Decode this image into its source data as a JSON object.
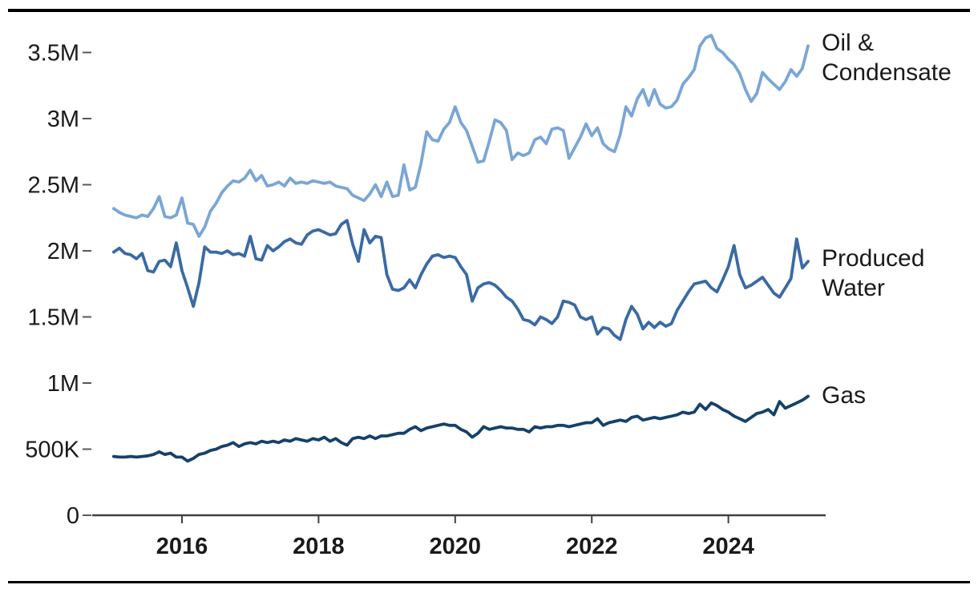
{
  "chart_data": {
    "type": "line",
    "title": "",
    "xlabel": "",
    "ylabel": "",
    "frequency": "monthly",
    "x_start": "2015-01",
    "x_end": "2025-03",
    "grid": false,
    "legend_position": "right-end-of-lines",
    "ylim_millions": [
      0,
      3.7
    ],
    "y_ticks": [
      {
        "label": "0",
        "value_millions": 0
      },
      {
        "label": "500K",
        "value_millions": 0.5
      },
      {
        "label": "1M",
        "value_millions": 1.0
      },
      {
        "label": "1.5M",
        "value_millions": 1.5
      },
      {
        "label": "2M",
        "value_millions": 2.0
      },
      {
        "label": "2.5M",
        "value_millions": 2.5
      },
      {
        "label": "3M",
        "value_millions": 3.0
      },
      {
        "label": "3.5M",
        "value_millions": 3.5
      }
    ],
    "x_ticks": [
      {
        "label": "2016",
        "year": 2016
      },
      {
        "label": "2018",
        "year": 2018
      },
      {
        "label": "2020",
        "year": 2020
      },
      {
        "label": "2022",
        "year": 2022
      },
      {
        "label": "2024",
        "year": 2024
      }
    ],
    "series": [
      {
        "name": "Oil & Condensate",
        "label_lines": [
          "Oil &",
          "Condensate"
        ],
        "color": "#7aa6d6",
        "values_millions": [
          2.32,
          2.29,
          2.27,
          2.26,
          2.25,
          2.27,
          2.26,
          2.32,
          2.41,
          2.26,
          2.25,
          2.27,
          2.4,
          2.21,
          2.2,
          2.11,
          2.18,
          2.3,
          2.36,
          2.44,
          2.49,
          2.53,
          2.52,
          2.55,
          2.61,
          2.53,
          2.57,
          2.49,
          2.5,
          2.52,
          2.49,
          2.55,
          2.51,
          2.52,
          2.51,
          2.53,
          2.52,
          2.51,
          2.52,
          2.49,
          2.48,
          2.47,
          2.42,
          2.4,
          2.38,
          2.43,
          2.5,
          2.41,
          2.52,
          2.41,
          2.42,
          2.65,
          2.46,
          2.48,
          2.66,
          2.9,
          2.84,
          2.83,
          2.92,
          2.97,
          3.09,
          2.97,
          2.91,
          2.79,
          2.67,
          2.68,
          2.83,
          2.99,
          2.97,
          2.91,
          2.69,
          2.74,
          2.72,
          2.74,
          2.84,
          2.86,
          2.81,
          2.92,
          2.93,
          2.91,
          2.7,
          2.78,
          2.86,
          2.96,
          2.87,
          2.93,
          2.81,
          2.77,
          2.75,
          2.88,
          3.09,
          3.02,
          3.15,
          3.22,
          3.1,
          3.22,
          3.11,
          3.08,
          3.09,
          3.14,
          3.26,
          3.31,
          3.37,
          3.55,
          3.61,
          3.63,
          3.53,
          3.5,
          3.45,
          3.41,
          3.34,
          3.22,
          3.13,
          3.19,
          3.35,
          3.3,
          3.26,
          3.22,
          3.28,
          3.37,
          3.32,
          3.38,
          3.55
        ]
      },
      {
        "name": "Produced Water",
        "label_lines": [
          "Produced",
          "Water"
        ],
        "color": "#3a6aa4",
        "values_millions": [
          1.99,
          2.02,
          1.98,
          1.97,
          1.94,
          1.98,
          1.85,
          1.84,
          1.92,
          1.93,
          1.88,
          2.06,
          1.85,
          1.72,
          1.58,
          1.76,
          2.03,
          1.99,
          1.99,
          1.98,
          2.0,
          1.97,
          1.98,
          1.96,
          2.11,
          1.94,
          1.93,
          2.04,
          2.0,
          2.03,
          2.07,
          2.09,
          2.06,
          2.05,
          2.12,
          2.15,
          2.16,
          2.14,
          2.12,
          2.13,
          2.2,
          2.23,
          2.05,
          1.92,
          2.16,
          2.06,
          2.11,
          2.1,
          1.82,
          1.71,
          1.7,
          1.72,
          1.78,
          1.72,
          1.82,
          1.9,
          1.96,
          1.97,
          1.95,
          1.96,
          1.95,
          1.88,
          1.82,
          1.62,
          1.72,
          1.75,
          1.76,
          1.74,
          1.7,
          1.65,
          1.62,
          1.56,
          1.48,
          1.47,
          1.44,
          1.5,
          1.48,
          1.45,
          1.5,
          1.62,
          1.61,
          1.59,
          1.5,
          1.48,
          1.5,
          1.37,
          1.42,
          1.41,
          1.36,
          1.33,
          1.48,
          1.58,
          1.52,
          1.41,
          1.46,
          1.42,
          1.46,
          1.43,
          1.45,
          1.55,
          1.62,
          1.69,
          1.75,
          1.76,
          1.77,
          1.72,
          1.69,
          1.78,
          1.88,
          2.04,
          1.82,
          1.72,
          1.74,
          1.77,
          1.8,
          1.74,
          1.68,
          1.65,
          1.72,
          1.79,
          2.09,
          1.87,
          1.92
        ]
      },
      {
        "name": "Gas",
        "label_lines": [
          "Gas"
        ],
        "color": "#15416a",
        "values_millions": [
          0.445,
          0.44,
          0.44,
          0.445,
          0.44,
          0.445,
          0.45,
          0.46,
          0.48,
          0.46,
          0.47,
          0.44,
          0.44,
          0.41,
          0.43,
          0.46,
          0.47,
          0.49,
          0.5,
          0.52,
          0.53,
          0.55,
          0.52,
          0.54,
          0.55,
          0.54,
          0.56,
          0.55,
          0.56,
          0.55,
          0.57,
          0.56,
          0.58,
          0.57,
          0.56,
          0.58,
          0.57,
          0.59,
          0.56,
          0.58,
          0.55,
          0.53,
          0.58,
          0.59,
          0.58,
          0.6,
          0.58,
          0.6,
          0.6,
          0.61,
          0.62,
          0.62,
          0.65,
          0.67,
          0.64,
          0.66,
          0.67,
          0.68,
          0.69,
          0.68,
          0.68,
          0.65,
          0.63,
          0.59,
          0.62,
          0.67,
          0.65,
          0.66,
          0.67,
          0.66,
          0.66,
          0.65,
          0.65,
          0.63,
          0.67,
          0.66,
          0.67,
          0.67,
          0.68,
          0.68,
          0.67,
          0.68,
          0.69,
          0.7,
          0.7,
          0.73,
          0.68,
          0.7,
          0.71,
          0.72,
          0.71,
          0.74,
          0.75,
          0.72,
          0.73,
          0.74,
          0.73,
          0.74,
          0.75,
          0.76,
          0.78,
          0.77,
          0.78,
          0.84,
          0.8,
          0.85,
          0.83,
          0.8,
          0.78,
          0.75,
          0.73,
          0.71,
          0.74,
          0.77,
          0.78,
          0.8,
          0.76,
          0.86,
          0.81,
          0.83,
          0.85,
          0.87,
          0.9
        ]
      }
    ],
    "frame": {
      "top_rule_color": "#000000",
      "bottom_rule_color": "#000000",
      "axis_color": "#404040",
      "tick_color": "#595959",
      "text_color": "#1a1a1a"
    }
  }
}
